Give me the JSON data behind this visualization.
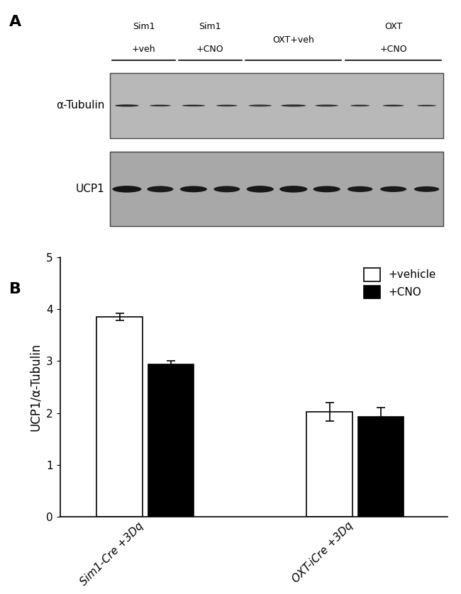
{
  "panel_A_label": "A",
  "panel_B_label": "B",
  "blot1_bg": "#b8b8b8",
  "blot2_bg": "#a8a8a8",
  "col_labels": [
    "Sim1\n+veh",
    "Sim1\n+CNO",
    "OXT+veh",
    "OXT\n+CNO"
  ],
  "row_labels": [
    "α-Tubulin",
    "UCP1"
  ],
  "n_lanes": 10,
  "bar_groups": [
    "Sim1-Cre +3Dq",
    "OXT-iCre +3Dq"
  ],
  "bar_values": [
    [
      3.85,
      2.93
    ],
    [
      2.02,
      1.93
    ]
  ],
  "bar_errors": [
    [
      0.07,
      0.07
    ],
    [
      0.18,
      0.17
    ]
  ],
  "bar_colors": [
    "#ffffff",
    "#000000"
  ],
  "bar_edgecolor": "#000000",
  "legend_labels": [
    "+vehicle",
    "+CNO"
  ],
  "legend_colors": [
    "#ffffff",
    "#000000"
  ],
  "ylabel": "UCP1/α-Tubulin",
  "ylim": [
    0,
    5
  ],
  "yticks": [
    0,
    1,
    2,
    3,
    4,
    5
  ],
  "bar_width": 0.35,
  "figsize": [
    6.5,
    8.38
  ],
  "dpi": 100,
  "tick_fontsize": 11,
  "label_fontsize": 12,
  "panel_label_fontsize": 16,
  "header_fontsize": 9,
  "row_label_fontsize": 11,
  "tubulin_band_widths": [
    0.062,
    0.055,
    0.06,
    0.055,
    0.06,
    0.065,
    0.06,
    0.05,
    0.055,
    0.05
  ],
  "tubulin_band_heights": [
    0.01,
    0.008,
    0.008,
    0.008,
    0.009,
    0.01,
    0.009,
    0.008,
    0.008,
    0.007
  ],
  "tubulin_band_grays": [
    0.15,
    0.2,
    0.18,
    0.2,
    0.22,
    0.18,
    0.2,
    0.22,
    0.2,
    0.22
  ],
  "ucp1_band_widths": [
    0.075,
    0.068,
    0.07,
    0.068,
    0.07,
    0.072,
    0.07,
    0.065,
    0.068,
    0.065
  ],
  "ucp1_band_heights": [
    0.03,
    0.028,
    0.028,
    0.028,
    0.03,
    0.03,
    0.028,
    0.026,
    0.026,
    0.025
  ],
  "ucp1_band_grays": [
    0.08,
    0.1,
    0.09,
    0.1,
    0.09,
    0.09,
    0.09,
    0.1,
    0.1,
    0.1
  ],
  "group_line_segments": [
    [
      0,
      1
    ],
    [
      2,
      3
    ],
    [
      4,
      6
    ],
    [
      7,
      9
    ]
  ],
  "group_header_texts": [
    "Sim1\n+veh",
    "Sim1\n+CNO",
    "OXT+veh",
    "OXT\n+CNO"
  ]
}
